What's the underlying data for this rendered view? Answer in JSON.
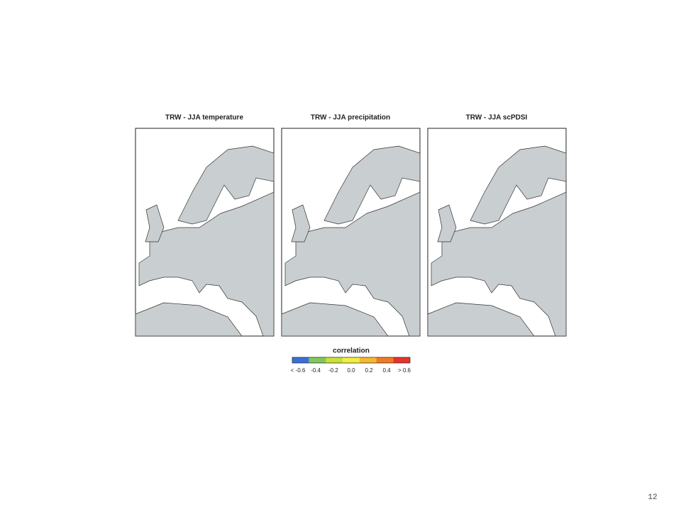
{
  "panels": [
    {
      "title": "TRW - JJA temperature"
    },
    {
      "title": "TRW - JJA precipitation"
    },
    {
      "title": "TRW - JJA scPDSI"
    }
  ],
  "legend": {
    "title": "correlation",
    "colors": [
      "#3b6fd6",
      "#7fc95a",
      "#c8e03a",
      "#f2ee3c",
      "#f7b731",
      "#f27a22",
      "#e8332a"
    ],
    "labels": [
      "< -0.6",
      "-0.4",
      "-0.2",
      "0.0",
      "0.2",
      "0.4",
      "> 0.6"
    ]
  },
  "page_number": "12"
}
